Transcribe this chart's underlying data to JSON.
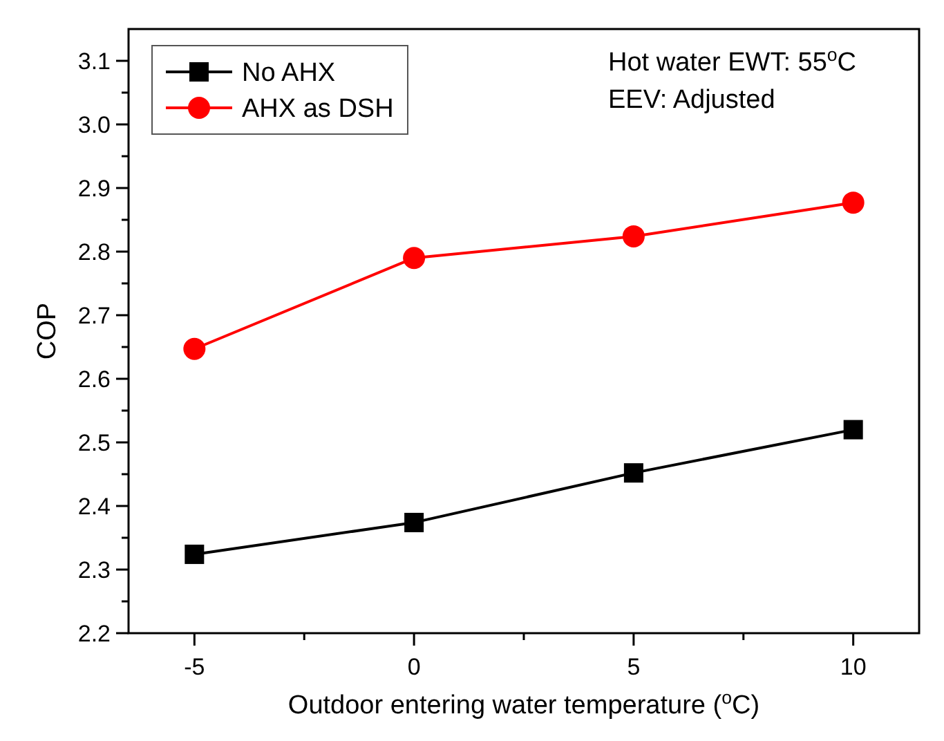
{
  "chart_data": {
    "type": "line",
    "xlabel": "Outdoor entering water temperature ($^{o}$C)",
    "ylabel": "COP",
    "x": [
      -5,
      0,
      5,
      10
    ],
    "series": [
      {
        "name": "No AHX",
        "color": "#000000",
        "marker": "square",
        "values": [
          2.324,
          2.374,
          2.452,
          2.52
        ]
      },
      {
        "name": "AHX as DSH",
        "color": "#ff0000",
        "marker": "circle",
        "values": [
          2.647,
          2.79,
          2.824,
          2.877
        ]
      }
    ],
    "xlim": [
      -6.5,
      11.5
    ],
    "xticks": [
      -5,
      {
        "value": -2.5,
        "label": null
      },
      0,
      {
        "value": 2.5,
        "label": null
      },
      5,
      {
        "value": 7.5,
        "label": null
      },
      10
    ],
    "ylim": [
      2.2,
      3.15
    ],
    "yticks": [
      2.2,
      {
        "value": 2.25,
        "label": null
      },
      2.3,
      {
        "value": 2.35,
        "label": null
      },
      2.4,
      {
        "value": 2.45,
        "label": null
      },
      2.5,
      {
        "value": 2.55,
        "label": null
      },
      2.6,
      {
        "value": 2.65,
        "label": null
      },
      2.7,
      {
        "value": 2.75,
        "label": null
      },
      2.8,
      {
        "value": 2.85,
        "label": null
      },
      2.9,
      {
        "value": 2.95,
        "label": null
      },
      {
        "value": 3.0,
        "label": "3.0"
      },
      {
        "value": 3.05,
        "label": null
      },
      3.1
    ],
    "annotations": [
      "Hot water EWT: 55$^{o}$C",
      "EEV: Adjusted"
    ],
    "legend": "top left",
    "grid": false,
    "line_style": "solid"
  }
}
